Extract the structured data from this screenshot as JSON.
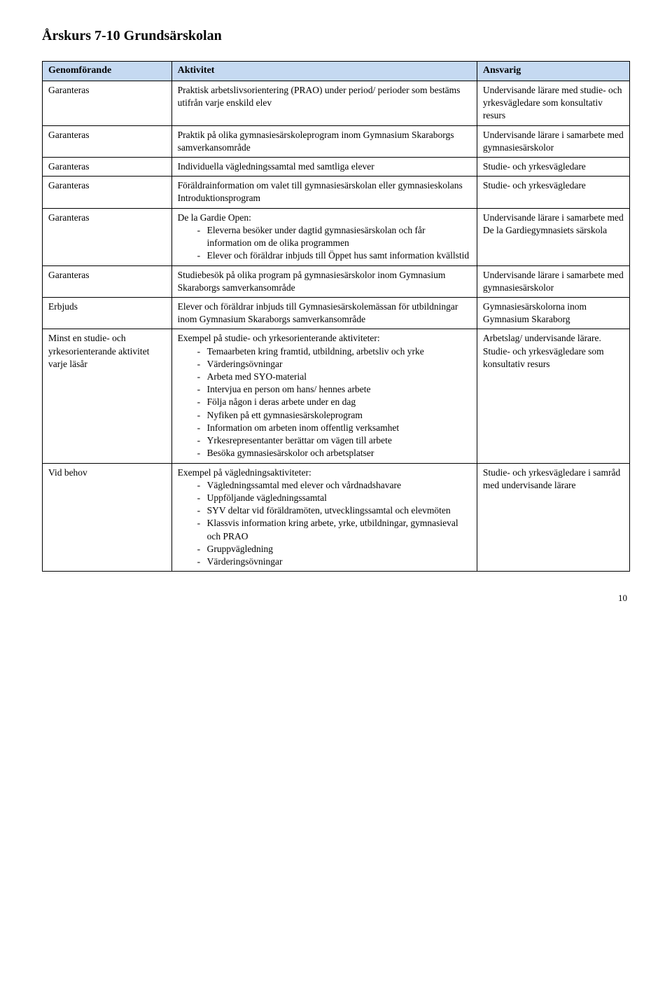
{
  "title": "Årskurs 7-10 Grundsärskolan",
  "headers": {
    "col1": "Genomförande",
    "col2": "Aktivitet",
    "col3": "Ansvarig"
  },
  "rows": [
    {
      "c1": "Garanteras",
      "c2": {
        "type": "text",
        "text": "Praktisk arbetslivsorientering (PRAO) under period/ perioder som bestäms utifrån varje enskild elev"
      },
      "c3": "Undervisande lärare med studie- och yrkesvägledare som konsultativ resurs"
    },
    {
      "c1": "Garanteras",
      "c2": {
        "type": "text",
        "text": "Praktik på olika gymnasiesärskoleprogram inom Gymnasium Skaraborgs samverkansområde"
      },
      "c3": "Undervisande lärare i samarbete med gymnasiesärskolor"
    },
    {
      "c1": "Garanteras",
      "c2": {
        "type": "text",
        "text": "Individuella vägledningssamtal med samtliga elever"
      },
      "c3": "Studie- och yrkesvägledare"
    },
    {
      "c1": "Garanteras",
      "c2": {
        "type": "text",
        "text": "Föräldrainformation om valet till gymnasiesärskolan eller gymnasieskolans Introduktionsprogram"
      },
      "c3": "Studie- och yrkesvägledare"
    },
    {
      "c1": "Garanteras",
      "c2": {
        "type": "list",
        "intro": "De la Gardie Open:",
        "items": [
          "Eleverna besöker under dagtid gymnasiesärskolan och får information om de olika programmen",
          "Elever och föräldrar inbjuds till Öppet hus samt information kvällstid"
        ]
      },
      "c3": "Undervisande lärare i samarbete med De la Gardiegymnasiets särskola"
    },
    {
      "c1": "Garanteras",
      "c2": {
        "type": "text",
        "text": "Studiebesök på olika program på gymnasiesärskolor inom Gymnasium Skaraborgs samverkansområde"
      },
      "c3": "Undervisande lärare i samarbete med gymnasiesärskolor"
    },
    {
      "c1": "Erbjuds",
      "c2": {
        "type": "text",
        "text": "Elever och föräldrar inbjuds till Gymnasiesärskolemässan för utbildningar inom Gymnasium Skaraborgs samverkansområde"
      },
      "c3": "Gymnasiesärskolorna inom Gymnasium Skaraborg"
    },
    {
      "c1": "Minst en studie- och yrkesorienterande aktivitet varje läsår",
      "c2": {
        "type": "list",
        "intro": "Exempel på studie- och yrkesorienterande aktiviteter:",
        "items": [
          "Temaarbeten kring framtid, utbildning, arbetsliv och yrke",
          "Värderingsövningar",
          "Arbeta med SYO-material",
          "Intervjua en person om hans/ hennes arbete",
          "Följa någon i deras arbete under en dag",
          "Nyfiken på ett gymnasiesärskoleprogram",
          "Information om arbeten inom offentlig verksamhet",
          "Yrkesrepresentanter berättar om vägen till arbete",
          "Besöka gymnasiesärskolor och arbetsplatser"
        ]
      },
      "c3": "Arbetslag/ undervisande lärare. Studie- och yrkesvägledare som konsultativ resurs"
    },
    {
      "c1": "Vid behov",
      "c2": {
        "type": "list",
        "intro": "Exempel på vägledningsaktiviteter:",
        "items": [
          "Vägledningssamtal med elever och vårdnadshavare",
          "Uppföljande vägledningssamtal",
          "SYV deltar vid föräldramöten, utvecklingssamtal och elevmöten",
          "Klassvis information kring arbete, yrke, utbildningar, gymnasieval och PRAO",
          "Gruppvägledning",
          "Värderingsövningar"
        ]
      },
      "c3": "Studie- och yrkesvägledare i samråd med undervisande lärare"
    }
  ],
  "page_number": "10",
  "colors": {
    "header_bg": "#c5d9f1",
    "border": "#000000",
    "text": "#000000",
    "background": "#ffffff"
  },
  "table_style": {
    "col_widths_pct": [
      22,
      52,
      26
    ],
    "font_size_pt": 10,
    "header_font_weight": "bold"
  }
}
